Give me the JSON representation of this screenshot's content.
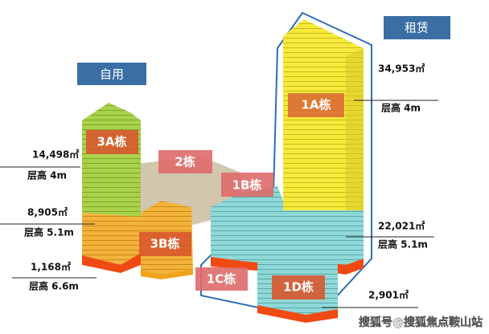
{
  "tags": {
    "self_use": "自用",
    "lease": "租赁"
  },
  "buildings": [
    {
      "label": "3A栋"
    },
    {
      "label": "2栋"
    },
    {
      "label": "1B栋"
    },
    {
      "label": "1A栋"
    },
    {
      "label": "3B栋"
    },
    {
      "label": "1C栋"
    },
    {
      "label": "1D栋"
    }
  ],
  "annotations": [
    {
      "area": "14,498㎡",
      "floor_height": "层高 4m"
    },
    {
      "area": "8,905㎡",
      "floor_height": "层高 5.1m"
    },
    {
      "area": "1,168㎡",
      "floor_height": "层高 6.6m"
    },
    {
      "area": "34,953㎡",
      "floor_height": "层高 4m"
    },
    {
      "area": "22,021㎡",
      "floor_height": "层高 5.1m"
    },
    {
      "area": "2,901㎡"
    }
  ],
  "watermark": "搜狐号@搜狐焦点鞍山站"
}
